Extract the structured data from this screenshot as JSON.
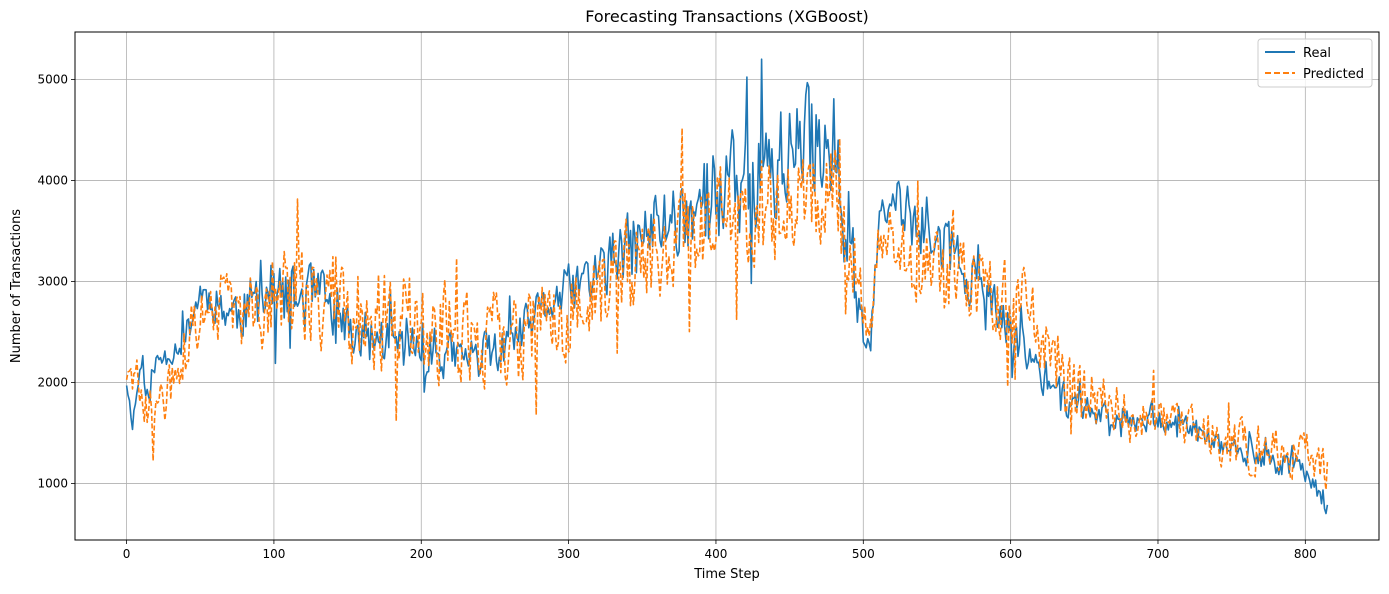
{
  "chart_data": {
    "type": "line",
    "title": "Forecasting Transactions (XGBoost)",
    "xlabel": "Time Step",
    "ylabel": "Number of Transactions",
    "xlim": [
      -35,
      850
    ],
    "ylim": [
      440,
      5470
    ],
    "xticks": [
      0,
      100,
      200,
      300,
      400,
      500,
      600,
      700,
      800
    ],
    "yticks": [
      1000,
      2000,
      3000,
      4000,
      5000
    ],
    "grid": true,
    "legend_position": "top-right",
    "x_range": [
      0,
      815
    ],
    "series": [
      {
        "name": "Real",
        "color": "#1f77b4",
        "style": "solid",
        "anchors": [
          [
            0,
            2000
          ],
          [
            4,
            1600
          ],
          [
            10,
            2200
          ],
          [
            15,
            1800
          ],
          [
            20,
            2200
          ],
          [
            30,
            2300
          ],
          [
            40,
            2450
          ],
          [
            50,
            2900
          ],
          [
            60,
            2800
          ],
          [
            70,
            2700
          ],
          [
            80,
            2700
          ],
          [
            90,
            2850
          ],
          [
            100,
            2900
          ],
          [
            110,
            2800
          ],
          [
            120,
            2850
          ],
          [
            130,
            2850
          ],
          [
            140,
            2700
          ],
          [
            150,
            2500
          ],
          [
            160,
            2450
          ],
          [
            180,
            2400
          ],
          [
            200,
            2300
          ],
          [
            220,
            2250
          ],
          [
            240,
            2250
          ],
          [
            260,
            2350
          ],
          [
            280,
            2700
          ],
          [
            300,
            2900
          ],
          [
            320,
            3100
          ],
          [
            340,
            3300
          ],
          [
            360,
            3550
          ],
          [
            380,
            3700
          ],
          [
            400,
            3850
          ],
          [
            420,
            4000
          ],
          [
            440,
            4150
          ],
          [
            460,
            4350
          ],
          [
            475,
            4450
          ],
          [
            485,
            4200
          ],
          [
            492,
            3400
          ],
          [
            498,
            2500
          ],
          [
            505,
            2350
          ],
          [
            510,
            3500
          ],
          [
            520,
            3800
          ],
          [
            540,
            3500
          ],
          [
            560,
            3300
          ],
          [
            580,
            2900
          ],
          [
            600,
            2500
          ],
          [
            620,
            2100
          ],
          [
            640,
            1800
          ],
          [
            660,
            1700
          ],
          [
            680,
            1650
          ],
          [
            700,
            1650
          ],
          [
            720,
            1550
          ],
          [
            740,
            1400
          ],
          [
            760,
            1250
          ],
          [
            780,
            1200
          ],
          [
            800,
            1150
          ],
          [
            815,
            800
          ]
        ],
        "amplitude": [
          [
            0,
            60
          ],
          [
            40,
            140
          ],
          [
            100,
            320
          ],
          [
            200,
            220
          ],
          [
            280,
            200
          ],
          [
            350,
            350
          ],
          [
            420,
            520
          ],
          [
            490,
            550
          ],
          [
            500,
            120
          ],
          [
            530,
            320
          ],
          [
            600,
            200
          ],
          [
            650,
            130
          ],
          [
            760,
            110
          ],
          [
            815,
            120
          ]
        ],
        "seed": 11
      },
      {
        "name": "Predicted",
        "color": "#ff7f0e",
        "style": "dashed",
        "anchors": [
          [
            0,
            2100
          ],
          [
            10,
            1800
          ],
          [
            20,
            1700
          ],
          [
            30,
            1950
          ],
          [
            45,
            2500
          ],
          [
            60,
            2750
          ],
          [
            80,
            2700
          ],
          [
            100,
            2900
          ],
          [
            120,
            2850
          ],
          [
            140,
            2800
          ],
          [
            160,
            2650
          ],
          [
            180,
            2600
          ],
          [
            200,
            2550
          ],
          [
            220,
            2450
          ],
          [
            240,
            2400
          ],
          [
            260,
            2400
          ],
          [
            280,
            2550
          ],
          [
            300,
            2700
          ],
          [
            320,
            2900
          ],
          [
            340,
            3100
          ],
          [
            360,
            3300
          ],
          [
            380,
            3450
          ],
          [
            400,
            3600
          ],
          [
            420,
            3700
          ],
          [
            440,
            3700
          ],
          [
            460,
            3850
          ],
          [
            480,
            4000
          ],
          [
            490,
            3300
          ],
          [
            500,
            2700
          ],
          [
            505,
            2500
          ],
          [
            510,
            3400
          ],
          [
            530,
            3300
          ],
          [
            550,
            3100
          ],
          [
            570,
            3000
          ],
          [
            590,
            2900
          ],
          [
            610,
            2700
          ],
          [
            625,
            2300
          ],
          [
            640,
            1900
          ],
          [
            660,
            1800
          ],
          [
            680,
            1650
          ],
          [
            700,
            1600
          ],
          [
            720,
            1550
          ],
          [
            740,
            1450
          ],
          [
            760,
            1350
          ],
          [
            780,
            1300
          ],
          [
            800,
            1250
          ],
          [
            815,
            1100
          ]
        ],
        "amplitude": [
          [
            0,
            150
          ],
          [
            60,
            350
          ],
          [
            100,
            420
          ],
          [
            200,
            480
          ],
          [
            300,
            420
          ],
          [
            400,
            500
          ],
          [
            480,
            500
          ],
          [
            500,
            150
          ],
          [
            540,
            420
          ],
          [
            600,
            380
          ],
          [
            640,
            320
          ],
          [
            700,
            200
          ],
          [
            760,
            240
          ],
          [
            815,
            220
          ]
        ],
        "seed": 29
      }
    ]
  }
}
